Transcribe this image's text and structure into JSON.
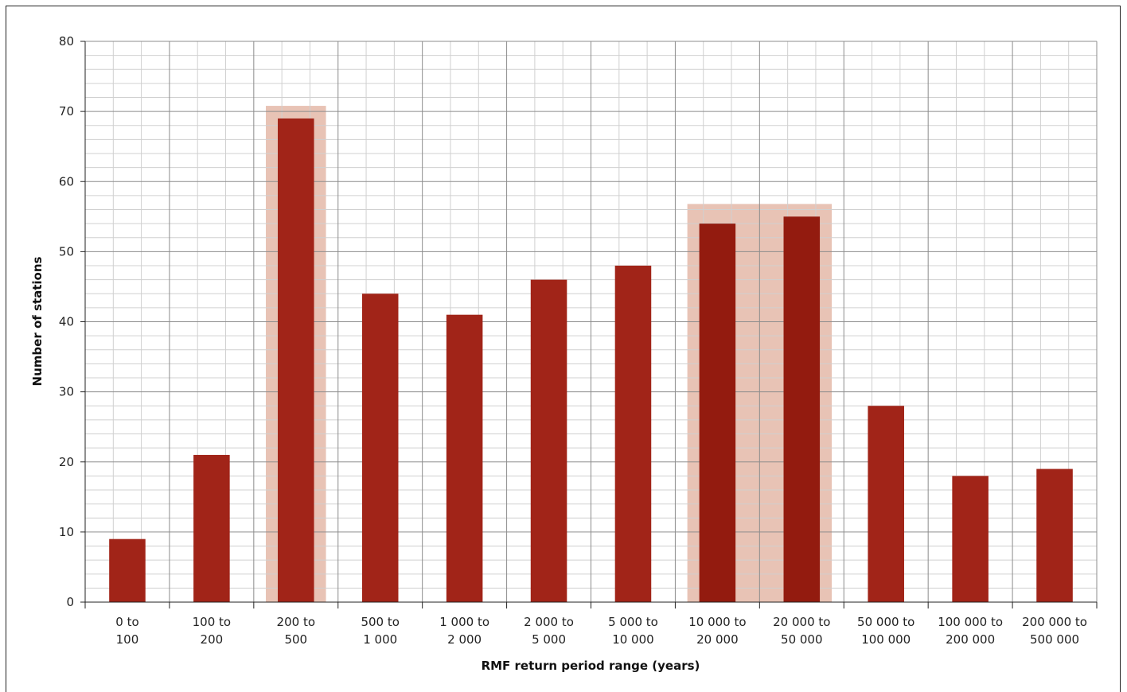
{
  "chart_data": {
    "type": "bar",
    "title": "",
    "xlabel": "RMF return period range (years)",
    "ylabel": "Number of stations",
    "ylim": [
      0,
      80
    ],
    "yticks": [
      0,
      10,
      20,
      30,
      40,
      50,
      60,
      70,
      80
    ],
    "grid": true,
    "categories": [
      [
        "0 to",
        "100"
      ],
      [
        "100 to",
        "200"
      ],
      [
        "200 to",
        "500"
      ],
      [
        "500 to",
        "1 000"
      ],
      [
        "1 000 to",
        "2 000"
      ],
      [
        "2 000 to",
        "5 000"
      ],
      [
        "5 000 to",
        "10 000"
      ],
      [
        "10 000 to",
        "20 000"
      ],
      [
        "20 000 to",
        "50 000"
      ],
      [
        "50 000 to",
        "100 000"
      ],
      [
        "100 000 to",
        "200 000"
      ],
      [
        "200 000 to",
        "500 000"
      ]
    ],
    "values": [
      9,
      21,
      69,
      44,
      41,
      46,
      48,
      54,
      55,
      28,
      18,
      19
    ],
    "highlighted_categories": [
      2,
      7,
      8
    ],
    "colors": {
      "bar": "#a12418",
      "bar_highlight": "#931b0f",
      "highlight_band": "#e8c3b5",
      "grid_major": "#8c8c8c",
      "grid_minor": "#d0d0d0",
      "axis": "#222222"
    }
  }
}
